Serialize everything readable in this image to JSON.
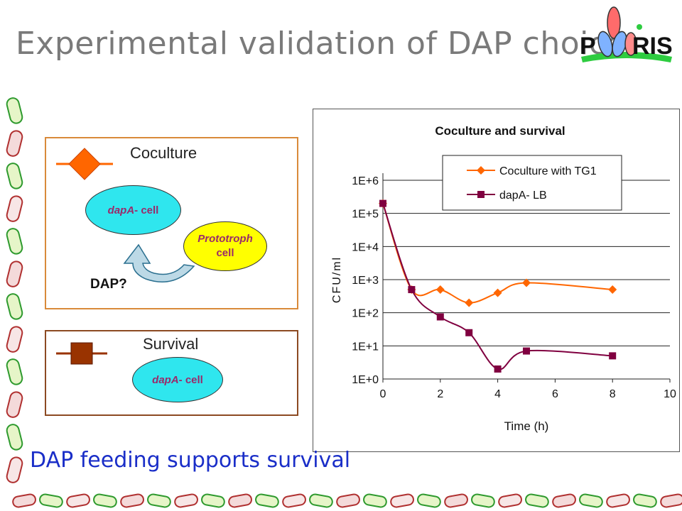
{
  "slide": {
    "title": "Experimental validation of DAP choice",
    "logo_text": {
      "left": "P",
      "right": "RIS"
    },
    "conclusion": "DAP feeding supports survival"
  },
  "coculture_panel": {
    "heading": "Coculture",
    "dapA_cell_prefix": "dapA",
    "dapA_cell_suffix": "- cell",
    "prototroph_line1": "Prototroph",
    "prototroph_line2": "cell",
    "dap_label": "DAP?",
    "marker_color": "#ff6600",
    "border_color": "#d98a3a"
  },
  "survival_panel": {
    "heading": "Survival",
    "dapA_cell_prefix": "dapA",
    "dapA_cell_suffix": "- cell",
    "marker_color": "#993300",
    "border_color": "#8c4a22"
  },
  "chart_data": {
    "type": "line",
    "title": "Coculture and survival",
    "xlabel": "Time (h)",
    "ylabel": "CFU/ml",
    "xlim": [
      0,
      10
    ],
    "x_ticks": [
      0,
      2,
      4,
      6,
      8,
      10
    ],
    "y_scale": "log",
    "ylim": [
      1,
      1000000
    ],
    "y_tick_labels": [
      "1E+0",
      "1E+1",
      "1E+2",
      "1E+3",
      "1E+4",
      "1E+5",
      "1E+6"
    ],
    "grid": "horizontal",
    "legend_position": "top-right",
    "series": [
      {
        "name": "Coculture with TG1",
        "color": "#ff6600",
        "marker": "diamond",
        "x": [
          0,
          1,
          2,
          3,
          4,
          5,
          8
        ],
        "y": [
          200000,
          500,
          500,
          200,
          400,
          800,
          500
        ]
      },
      {
        "name": "dapA- LB",
        "color": "#800040",
        "marker": "square",
        "x": [
          0,
          1,
          2,
          3,
          4,
          5,
          8
        ],
        "y": [
          200000,
          500,
          75,
          25,
          2,
          7,
          5
        ]
      }
    ]
  }
}
